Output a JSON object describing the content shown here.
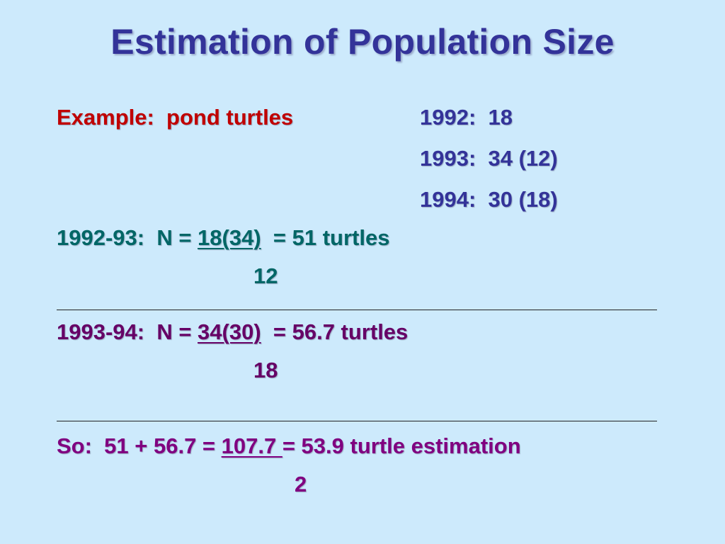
{
  "slide": {
    "title": "Estimation of Population Size",
    "example_label": "Example:  pond turtles",
    "data_rows": [
      "1992:  18",
      "1993:  34 (12)",
      "1994:  30 (18)"
    ],
    "calc1": {
      "prefix": "1992-93:  N = ",
      "numerator": "18(34)",
      "result": "  = 51 turtles",
      "denominator": "12"
    },
    "calc2": {
      "prefix": "1993-94:  N = ",
      "numerator": "34(30)",
      "result": "  = 56.7 turtles",
      "denominator": "18"
    },
    "summary": {
      "prefix": "So:  51 + 56.7 = ",
      "numerator": "107.7 ",
      "result": "= 53.9 turtle estimation",
      "denominator": "2"
    },
    "colors": {
      "background": "#cdeafc",
      "title": "#333399",
      "example": "#c00000",
      "calc1": "#006666",
      "calc2": "#660066",
      "summary": "#800080"
    }
  }
}
